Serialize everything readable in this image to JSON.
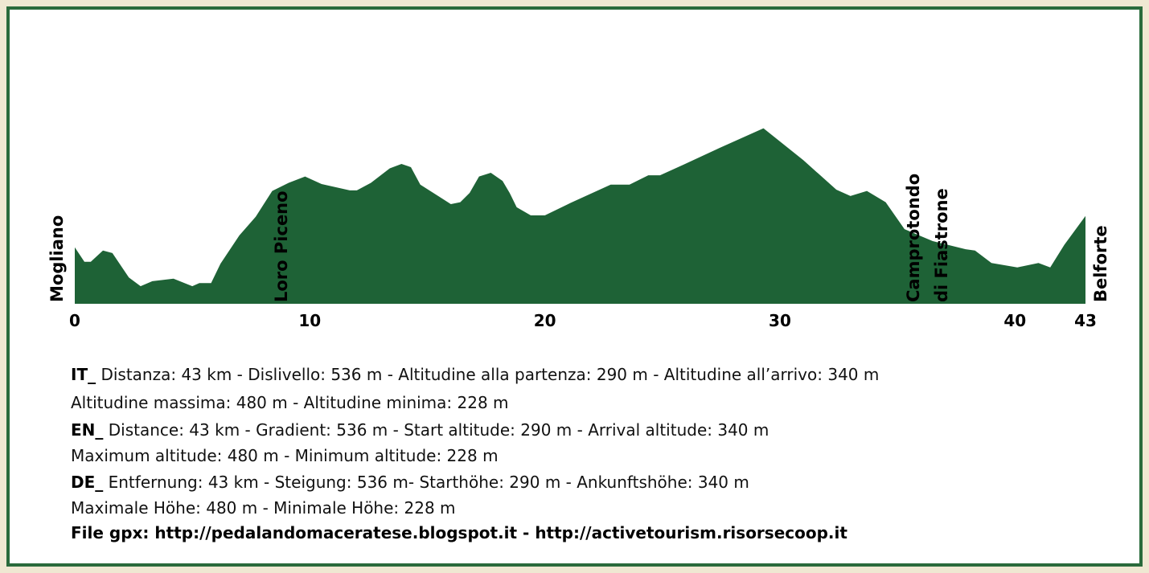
{
  "chart_data": {
    "type": "area",
    "color": "#1e6236",
    "x": [
      0,
      0.41,
      0.68,
      1.2,
      1.6,
      2.3,
      2.8,
      3.3,
      4.2,
      5.0,
      5.3,
      5.8,
      6.2,
      7.0,
      7.7,
      8.4,
      9.1,
      9.8,
      10.5,
      11.7,
      12.0,
      12.6,
      13.4,
      13.9,
      14.3,
      14.7,
      15.5,
      16.0,
      16.4,
      16.8,
      17.2,
      17.7,
      18.2,
      18.5,
      18.8,
      19.4,
      20.0,
      21.1,
      22.8,
      23.6,
      24.4,
      24.9,
      25.9,
      27.4,
      29.3,
      31.0,
      32.4,
      33.0,
      33.7,
      34.5,
      35.3,
      36.5,
      37.9,
      38.3,
      39.0,
      40.1,
      41.0,
      41.5,
      42.1,
      43.0
    ],
    "values": [
      290,
      267,
      267,
      285,
      281,
      242,
      228,
      236,
      240,
      228,
      233,
      233,
      264,
      309,
      339,
      380,
      393,
      403,
      391,
      381,
      381,
      393,
      416,
      423,
      418,
      390,
      371,
      359,
      362,
      377,
      403,
      409,
      396,
      377,
      354,
      341,
      341,
      361,
      390,
      390,
      405,
      405,
      422,
      448,
      480,
      429,
      382,
      372,
      380,
      362,
      319,
      300,
      287,
      285,
      265,
      258,
      265,
      258,
      294,
      340
    ],
    "xlim": [
      0,
      43
    ],
    "ylim": [
      200,
      500
    ],
    "xticks": [
      0,
      10,
      20,
      30,
      40,
      43
    ],
    "annotations": [
      [
        "Mogliano"
      ],
      [
        "Loro Piceno"
      ],
      [
        "Camprotondo",
        "di Fiastrone"
      ],
      [
        "Belforte"
      ]
    ]
  },
  "info": [
    {
      "bold": "IT_",
      "text": " Distanza: 43 km - Dislivello: 536 m - Altitudine alla partenza: 290 m - Altitudine all’arrivo: 340 m"
    },
    {
      "text": "Altitudine massima: 480 m - Altitudine minima: 228 m"
    },
    {
      "bold": "EN_",
      "text": " Distance:  43 km - Gradient: 536 m - Start altitude: 290 m - Arrival altitude: 340 m"
    },
    {
      "text": "Maximum altitude: 480 m - Minimum altitude: 228 m"
    },
    {
      "bold": "DE_",
      "text": " Entfernung: 43 km - Steigung: 536 m- Starthöhe: 290 m - Ankunftshöhe: 340 m"
    },
    {
      "text": "Maximale Höhe: 480 m - Minimale Höhe: 228 m"
    },
    {
      "bold": "File gpx: http://pedalandomaceratese.blogspot.it  -  http://activetourism.risorsecoop.it"
    }
  ]
}
